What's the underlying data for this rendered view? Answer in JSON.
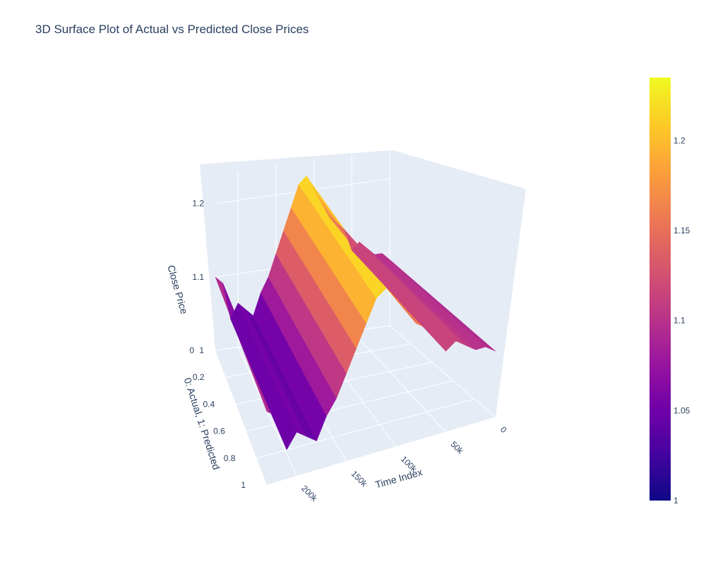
{
  "chart_data": {
    "type": "surface",
    "title": "3D Surface Plot of Actual vs Predicted Close Prices",
    "x_axis": {
      "label": "Time Index",
      "ticks": [
        "0",
        "50k",
        "100k",
        "150k",
        "200k"
      ],
      "tick_values": [
        0,
        50000,
        100000,
        150000,
        200000
      ],
      "range": [
        0,
        230000
      ]
    },
    "y_axis": {
      "label": "0: Actual, 1: Predicted",
      "ticks": [
        "0",
        "0.2",
        "0.4",
        "0.6",
        "0.8",
        "1"
      ],
      "tick_values": [
        0,
        0.2,
        0.4,
        0.6,
        0.8,
        1
      ],
      "range": [
        0,
        1
      ]
    },
    "z_axis": {
      "label": "Close Price",
      "ticks": [
        "1",
        "1.1",
        "1.2"
      ],
      "tick_values": [
        1.0,
        1.1,
        1.2
      ],
      "range": [
        1.0,
        1.24
      ]
    },
    "colorbar": {
      "ticks": [
        "1",
        "1.05",
        "1.1",
        "1.15",
        "1.2"
      ],
      "tick_values": [
        1.0,
        1.05,
        1.1,
        1.15,
        1.2
      ],
      "range": [
        1.0,
        1.235
      ],
      "colorscale": "plasma"
    },
    "series": [
      {
        "x": [
          0,
          10000,
          20000,
          30000,
          40000,
          50000,
          60000,
          70000,
          80000,
          90000,
          100000,
          110000,
          120000,
          130000,
          140000,
          150000,
          160000,
          170000,
          180000,
          190000,
          200000,
          210000,
          220000,
          230000
        ],
        "close": [
          1.09,
          1.1,
          1.1,
          1.11,
          1.12,
          1.11,
          1.14,
          1.15,
          1.16,
          1.18,
          1.2,
          1.22,
          1.21,
          1.18,
          1.15,
          1.12,
          1.09,
          1.07,
          1.04,
          1.05,
          1.06,
          1.04,
          1.09,
          1.1
        ]
      }
    ]
  }
}
